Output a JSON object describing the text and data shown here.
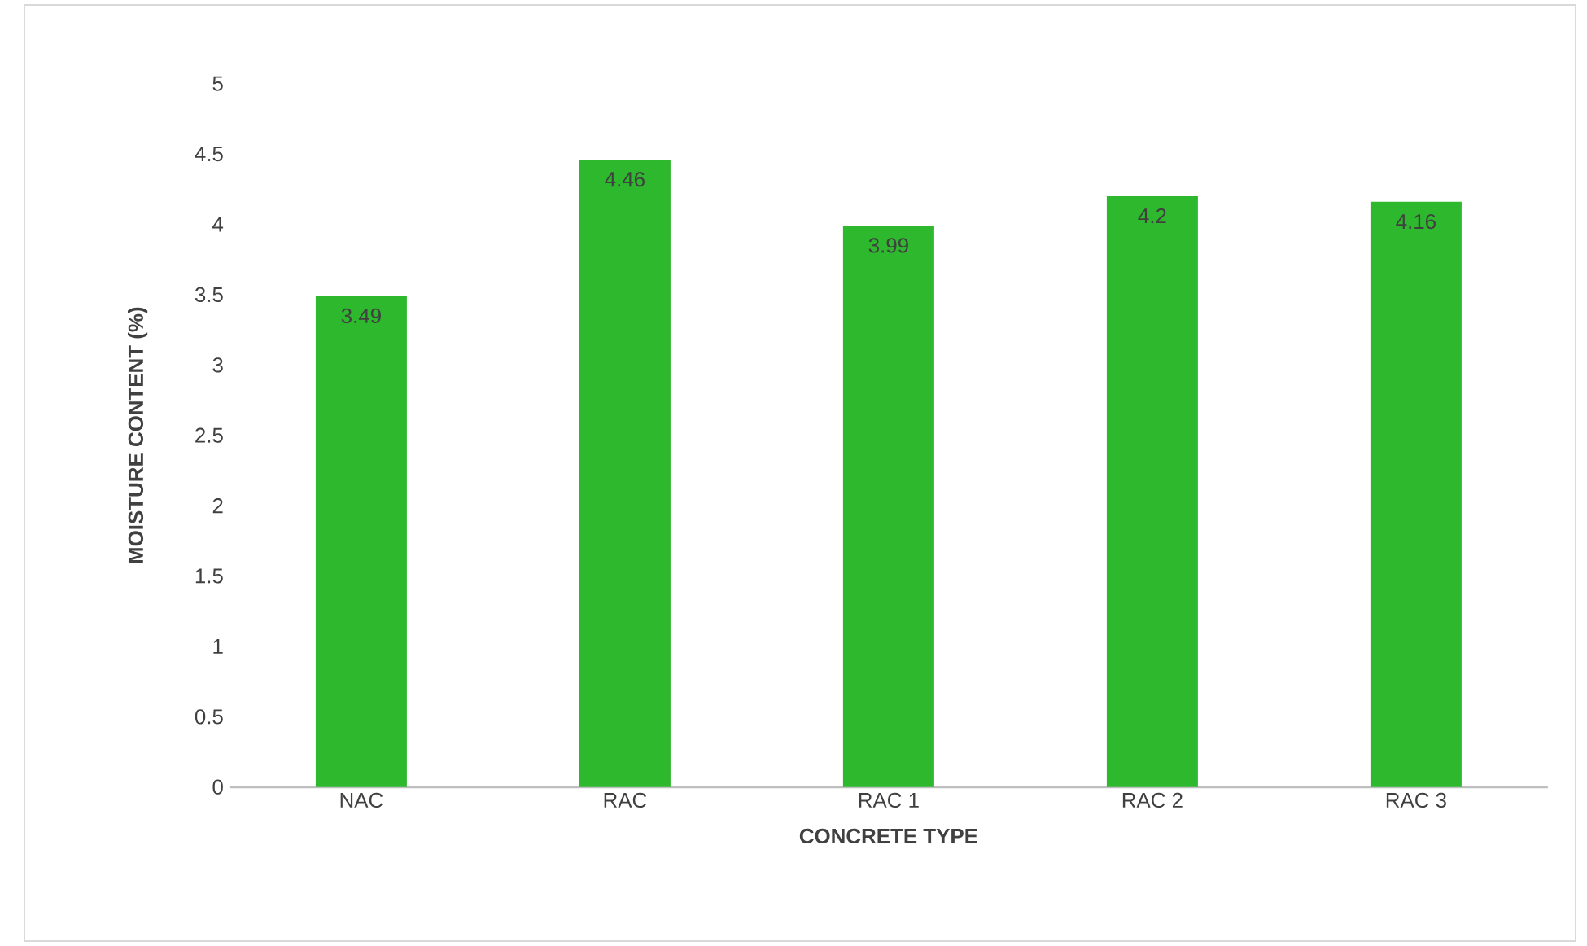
{
  "chart_data": {
    "type": "bar",
    "xlabel": "CONCRETE TYPE",
    "ylabel": "MOISTURE CONTENT (%)",
    "categories": [
      "NAC",
      "RAC",
      "RAC 1",
      "RAC 2",
      "RAC 3"
    ],
    "values": [
      3.49,
      4.46,
      3.99,
      4.2,
      4.16
    ],
    "color": "#2eb82e",
    "ylim": [
      0,
      5
    ],
    "yticks": [
      0,
      0.5,
      1,
      1.5,
      2,
      2.5,
      3,
      3.5,
      4,
      4.5,
      5
    ],
    "data_labels": true
  }
}
